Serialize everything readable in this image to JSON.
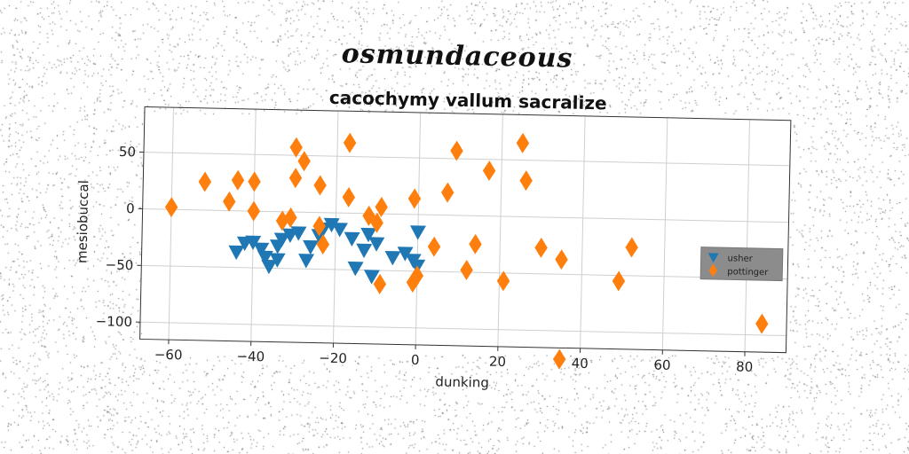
{
  "suptitle": "osmundaceous",
  "chart_data": {
    "type": "scatter",
    "title": "cacochymy vallum sacralize",
    "xlabel": "dunking",
    "ylabel": "mesiobuccal",
    "xlim": [
      -67,
      90
    ],
    "ylim": [
      -115,
      90
    ],
    "xticks": [
      -60,
      -40,
      -20,
      0,
      20,
      40,
      60,
      80
    ],
    "yticks": [
      50,
      0,
      -50,
      -100
    ],
    "grid": true,
    "legend": "right",
    "series": [
      {
        "name": "usher",
        "marker": "triangle-down",
        "color": "#1f77b4",
        "points": [
          [
            -44,
            -36
          ],
          [
            -42,
            -28
          ],
          [
            -40,
            -27
          ],
          [
            -38,
            -33
          ],
          [
            -37,
            -40
          ],
          [
            -36,
            -48
          ],
          [
            -34,
            -42
          ],
          [
            -34,
            -30
          ],
          [
            -33,
            -24
          ],
          [
            -31,
            -20
          ],
          [
            -29,
            -18
          ],
          [
            -27,
            -42
          ],
          [
            -26,
            -30
          ],
          [
            -24,
            -20
          ],
          [
            -23,
            -14
          ],
          [
            -21,
            -10
          ],
          [
            -19,
            -14
          ],
          [
            -16,
            -22
          ],
          [
            -15,
            -48
          ],
          [
            -13,
            -32
          ],
          [
            -12,
            -18
          ],
          [
            -11,
            -55
          ],
          [
            -10,
            -26
          ],
          [
            -6,
            -38
          ],
          [
            -3,
            -34
          ],
          [
            -1,
            -40
          ],
          [
            0,
            -45
          ],
          [
            0,
            -15
          ]
        ]
      },
      {
        "name": "pottinger",
        "marker": "diamond",
        "color": "#ff7f0e",
        "points": [
          [
            -60,
            2
          ],
          [
            -52,
            25
          ],
          [
            -46,
            8
          ],
          [
            -44,
            27
          ],
          [
            -40,
            26
          ],
          [
            -40,
            0
          ],
          [
            -33,
            -8
          ],
          [
            -31,
            -5
          ],
          [
            -30,
            57
          ],
          [
            -30,
            30
          ],
          [
            -28,
            45
          ],
          [
            -24,
            24
          ],
          [
            -24,
            -12
          ],
          [
            -23,
            -28
          ],
          [
            -17,
            62
          ],
          [
            -17,
            14
          ],
          [
            -12,
            -2
          ],
          [
            -10,
            -8
          ],
          [
            -9,
            6
          ],
          [
            -9,
            -62
          ],
          [
            -1,
            14
          ],
          [
            -1,
            -60
          ],
          [
            0,
            -54
          ],
          [
            4,
            -28
          ],
          [
            7,
            20
          ],
          [
            9,
            57
          ],
          [
            12,
            -48
          ],
          [
            14,
            -25
          ],
          [
            17,
            40
          ],
          [
            21,
            -57
          ],
          [
            25,
            65
          ],
          [
            26,
            32
          ],
          [
            30,
            -27
          ],
          [
            35,
            -37
          ],
          [
            35,
            -125
          ],
          [
            49,
            -55
          ],
          [
            52,
            -25
          ],
          [
            84,
            -90
          ]
        ]
      }
    ]
  }
}
